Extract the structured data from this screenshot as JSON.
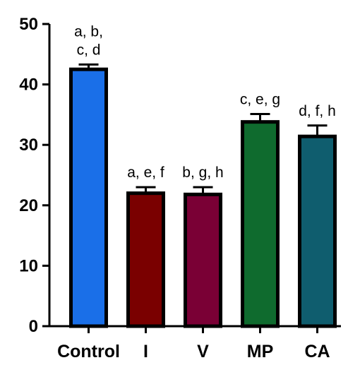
{
  "chart_data": {
    "type": "bar",
    "title": "",
    "xlabel": "",
    "ylabel": "",
    "ylim": [
      0,
      50
    ],
    "yticks": [
      0,
      10,
      20,
      30,
      40,
      50
    ],
    "grid": false,
    "categories": [
      "Control",
      "I",
      "V",
      "MP",
      "CA"
    ],
    "values": [
      42.5,
      22.0,
      21.8,
      33.8,
      31.4
    ],
    "errors": [
      0.8,
      1.0,
      1.2,
      1.3,
      1.8
    ],
    "colors": [
      "#1a6fe8",
      "#7a0000",
      "#7a0035",
      "#0f6b2e",
      "#0f5d6e"
    ],
    "significance_labels": [
      [
        "a, b,",
        "c, d"
      ],
      [
        "a, e, f"
      ],
      [
        "b, g, h"
      ],
      [
        "c, e, g"
      ],
      [
        "d, f, h"
      ]
    ]
  }
}
